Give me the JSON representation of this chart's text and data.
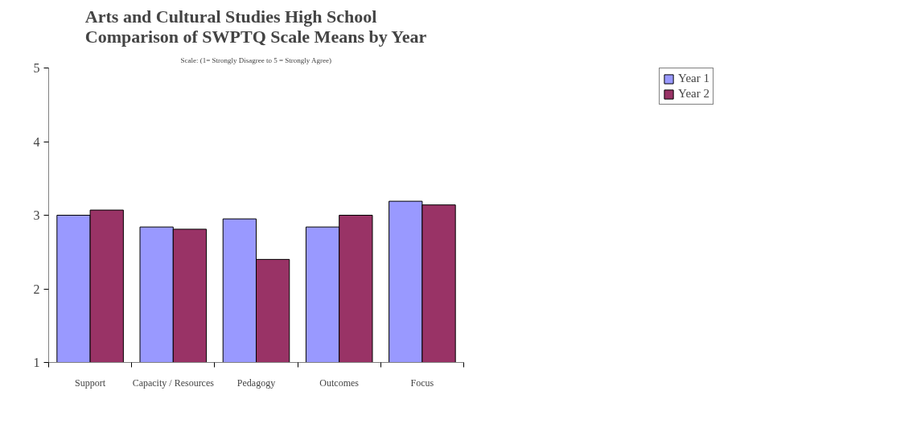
{
  "chart_data": {
    "type": "bar",
    "title": "Arts and Cultural Studies High School\nComparison of SWPTQ Scale Means by Year",
    "subtitle": "Scale: (1= Strongly Disagree to 5 = Strongly Agree)",
    "categories": [
      "Support",
      "Capacity / Resources",
      "Pedagogy",
      "Outcomes",
      "Focus"
    ],
    "series": [
      {
        "name": "Year 1",
        "color": "#9999ff",
        "values": [
          3.0,
          2.84,
          2.95,
          2.84,
          3.19
        ]
      },
      {
        "name": "Year 2",
        "color": "#993366",
        "values": [
          3.07,
          2.81,
          2.4,
          3.0,
          3.14
        ]
      }
    ],
    "ylim": [
      1,
      5
    ],
    "yticks": [
      1,
      2,
      3,
      4,
      5
    ],
    "grid": false,
    "legend": "top right"
  }
}
